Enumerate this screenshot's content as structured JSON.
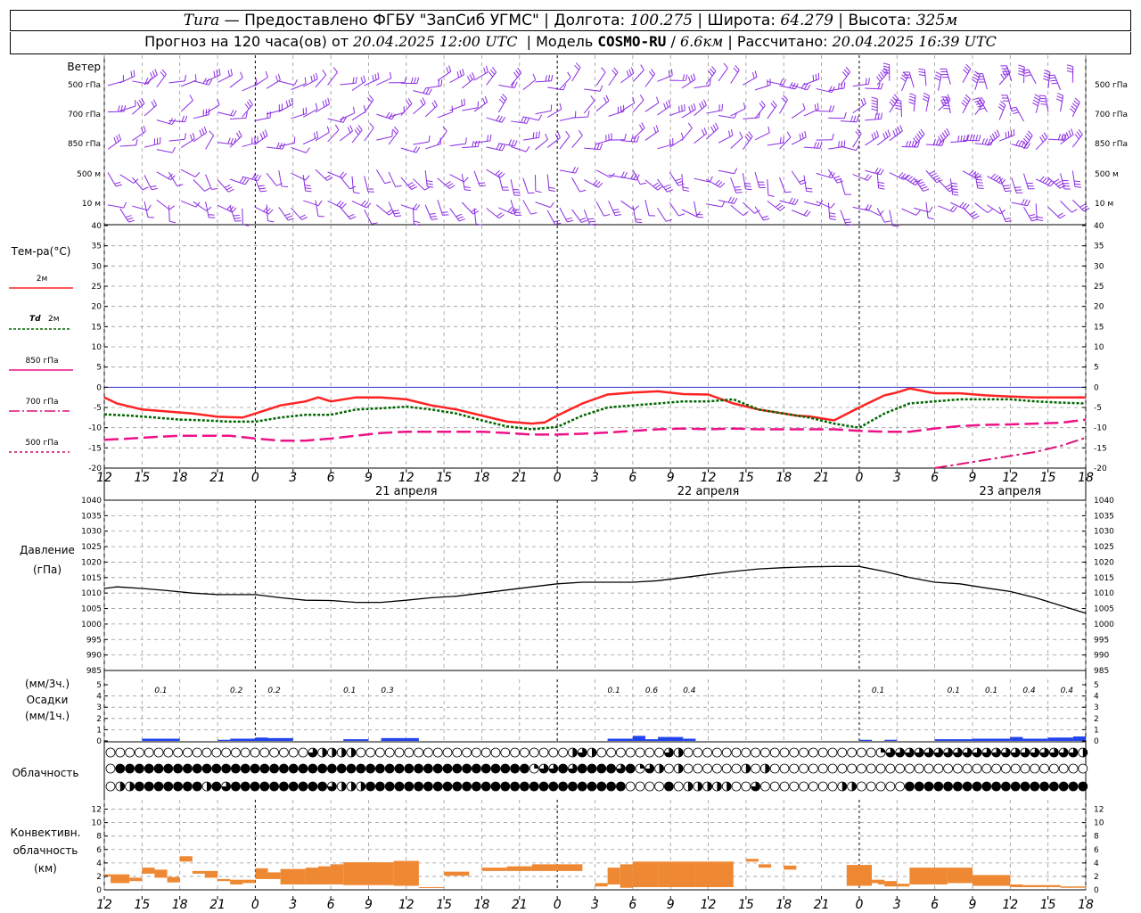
{
  "header": {
    "station": "Tura",
    "provider": "Предоставлено ФГБУ \"ЗапСиб УГМС\"",
    "lon_label": "Долгота:",
    "lon_value": "100.275",
    "lat_label": "Широта:",
    "lat_value": "64.279",
    "alt_label": "Высота:",
    "alt_value": "325м",
    "forecast_label": "Прогноз на 120 часа(ов) от",
    "forecast_from": "20.04.2025 12:00 UTC",
    "model_label": "Модель",
    "model_name": "COSMO-RU",
    "model_res": "6.6км",
    "computed_label": "Рассчитано:",
    "computed_value": "20.04.2025 16:39 UTC"
  },
  "colors": {
    "wind": "#8a2be2",
    "t2m": "#ff2222",
    "td2m": "#006600",
    "t850": "#ee1188",
    "t700": "#dd1177",
    "t500": "#cc1166",
    "pressure": "#000000",
    "precip": "#2244ee",
    "convective": "#ee8833",
    "grid": "#999999",
    "zero_line": "#3333cc"
  },
  "chart_data": [
    {
      "type": "wind-barbs",
      "title": "Ветер",
      "levels": [
        "500 гПа",
        "700 гПа",
        "850 гПа",
        "500 м",
        "10 м"
      ]
    },
    {
      "type": "line",
      "title": "Тем-ра(°C)",
      "ylim": [
        -20,
        40
      ],
      "yticks": [
        -20,
        -15,
        -10,
        -5,
        0,
        5,
        10,
        15,
        20,
        25,
        30,
        35,
        40
      ],
      "x_start_hours": 12,
      "x_end_hours": 90,
      "xtick_labels": [
        "12",
        "15",
        "18",
        "21",
        "0",
        "3",
        "6",
        "9",
        "12",
        "15",
        "18",
        "21",
        "0",
        "3",
        "6",
        "9",
        "12",
        "15",
        "18",
        "21",
        "0",
        "3",
        "6",
        "9",
        "12",
        "15",
        "18"
      ],
      "day_labels": [
        "21 апреля",
        "22 апреля",
        "23 апреля"
      ],
      "series": [
        {
          "name": "2м",
          "style": "solid",
          "x": [
            12,
            13,
            15,
            17,
            19,
            21,
            23,
            24,
            26,
            28,
            29,
            30,
            32,
            34,
            36,
            38,
            40,
            42,
            44,
            46,
            47,
            48,
            50,
            52,
            54,
            56,
            58,
            60,
            62,
            64,
            66,
            67,
            68,
            70,
            72,
            74,
            75,
            76,
            78,
            80,
            82,
            84,
            86,
            88,
            90
          ],
          "y": [
            -2.5,
            -4,
            -5.5,
            -6,
            -6.5,
            -7.3,
            -7.5,
            -6.5,
            -4.5,
            -3.5,
            -2.5,
            -3.5,
            -2.5,
            -2.5,
            -3,
            -4.5,
            -5.5,
            -7,
            -8.5,
            -9,
            -8.7,
            -7,
            -4,
            -1.8,
            -1.3,
            -1,
            -1.7,
            -1.8,
            -4,
            -5.5,
            -6.5,
            -7,
            -7.2,
            -8.2,
            -5,
            -2,
            -1.3,
            -0.3,
            -1.5,
            -1.5,
            -2,
            -2.3,
            -2.5,
            -2.5,
            -2.5
          ]
        },
        {
          "name": "Td 2м",
          "style": "dashed",
          "x": [
            12,
            14,
            16,
            18,
            20,
            22,
            24,
            26,
            28,
            30,
            32,
            34,
            36,
            38,
            40,
            42,
            44,
            46,
            48,
            50,
            52,
            54,
            56,
            58,
            60,
            62,
            64,
            66,
            68,
            70,
            72,
            74,
            76,
            78,
            80,
            82,
            84,
            86,
            88,
            90
          ],
          "y": [
            -6.7,
            -7,
            -7.5,
            -8,
            -8.2,
            -8.5,
            -8.5,
            -7.5,
            -6.8,
            -6.8,
            -5.5,
            -5.2,
            -4.8,
            -5.5,
            -6.5,
            -8.2,
            -9.7,
            -10.4,
            -9.8,
            -7,
            -5,
            -4.5,
            -4,
            -3.5,
            -3.5,
            -3,
            -5.5,
            -6.5,
            -7.5,
            -9,
            -10,
            -6.5,
            -4,
            -3.5,
            -3,
            -3,
            -3,
            -3.5,
            -3.8,
            -4
          ]
        },
        {
          "name": "850 гПа",
          "style": "long-dash",
          "x": [
            12,
            14,
            16,
            18,
            20,
            22,
            24,
            26,
            28,
            30,
            32,
            34,
            36,
            38,
            40,
            42,
            44,
            46,
            48,
            50,
            52,
            54,
            56,
            58,
            60,
            62,
            64,
            66,
            68,
            70,
            72,
            74,
            76,
            78,
            80,
            82,
            84,
            86,
            88,
            90
          ],
          "y": [
            -13,
            -12.7,
            -12.3,
            -12,
            -12,
            -12,
            -12.7,
            -13.2,
            -13.2,
            -12.7,
            -12,
            -11.3,
            -11,
            -11,
            -11,
            -11,
            -11.3,
            -11.7,
            -11.7,
            -11.5,
            -11.2,
            -10.8,
            -10.4,
            -10.2,
            -10.4,
            -10.2,
            -10.4,
            -10.4,
            -10.4,
            -10.4,
            -10.8,
            -11,
            -11,
            -10.2,
            -9.6,
            -9.3,
            -9.2,
            -9,
            -8.8,
            -8
          ]
        },
        {
          "name": "700 гПа",
          "style": "dash-dot",
          "x": [
            78,
            80,
            82,
            84,
            86,
            88,
            90
          ],
          "y": [
            -20,
            -19,
            -18,
            -17,
            -16,
            -14.5,
            -12.5
          ]
        }
      ]
    },
    {
      "type": "line",
      "title": "Давление",
      "unit": "(гПа)",
      "ylim": [
        985,
        1040
      ],
      "yticks": [
        985,
        990,
        995,
        1000,
        1005,
        1010,
        1015,
        1020,
        1025,
        1030,
        1035,
        1040
      ],
      "x": [
        12,
        13,
        15,
        17,
        19,
        21,
        23,
        24,
        26,
        28,
        30,
        32,
        34,
        36,
        38,
        40,
        42,
        44,
        46,
        48,
        50,
        52,
        54,
        56,
        58,
        60,
        62,
        64,
        66,
        68,
        70,
        72,
        74,
        76,
        78,
        80,
        82,
        84,
        86,
        88,
        90
      ],
      "y": [
        1011.5,
        1012,
        1011.5,
        1010.8,
        1010,
        1009.5,
        1009.5,
        1009.5,
        1008.5,
        1007.7,
        1007.6,
        1007,
        1007,
        1007.7,
        1008.5,
        1009,
        1010,
        1011,
        1012,
        1013,
        1013.5,
        1013.5,
        1013.5,
        1014,
        1015,
        1016,
        1017,
        1017.8,
        1018.2,
        1018.5,
        1018.6,
        1018.6,
        1017,
        1015,
        1013.5,
        1013,
        1011.7,
        1010.5,
        1008.5,
        1006,
        1003.5
      ]
    },
    {
      "type": "bar",
      "title": "Осадки",
      "unit_3h": "(мм/3ч.)",
      "unit_1h": "(мм/1ч.)",
      "ylim": [
        0,
        5
      ],
      "yticks": [
        0,
        1,
        2,
        3,
        4,
        5
      ],
      "labels_3h": [
        {
          "x": 16.5,
          "v": "0.1"
        },
        {
          "x": 22.5,
          "v": "0.2"
        },
        {
          "x": 25.5,
          "v": "0.2"
        },
        {
          "x": 31.5,
          "v": "0.1"
        },
        {
          "x": 34.5,
          "v": "0.3"
        },
        {
          "x": 52.5,
          "v": "0.1"
        },
        {
          "x": 55.5,
          "v": "0.6"
        },
        {
          "x": 58.5,
          "v": "0.4"
        },
        {
          "x": 73.5,
          "v": "0.1"
        },
        {
          "x": 79.5,
          "v": "0.1"
        },
        {
          "x": 82.5,
          "v": "0.1"
        },
        {
          "x": 85.5,
          "v": "0.4"
        },
        {
          "x": 88.5,
          "v": "0.4"
        }
      ],
      "hourly": [
        {
          "x": 15,
          "w": 3,
          "v": 0.2
        },
        {
          "x": 21,
          "w": 1,
          "v": 0.1
        },
        {
          "x": 22,
          "w": 2,
          "v": 0.2
        },
        {
          "x": 24,
          "w": 1,
          "v": 0.3
        },
        {
          "x": 25,
          "w": 2,
          "v": 0.25
        },
        {
          "x": 31,
          "w": 2,
          "v": 0.15
        },
        {
          "x": 34,
          "w": 3,
          "v": 0.25
        },
        {
          "x": 52,
          "w": 2,
          "v": 0.2
        },
        {
          "x": 54,
          "w": 1,
          "v": 0.45
        },
        {
          "x": 55,
          "w": 1,
          "v": 0.15
        },
        {
          "x": 56,
          "w": 2,
          "v": 0.35
        },
        {
          "x": 58,
          "w": 1,
          "v": 0.2
        },
        {
          "x": 72,
          "w": 1,
          "v": 0.1
        },
        {
          "x": 74,
          "w": 1,
          "v": 0.1
        },
        {
          "x": 78,
          "w": 3,
          "v": 0.15
        },
        {
          "x": 81,
          "w": 3,
          "v": 0.2
        },
        {
          "x": 84,
          "w": 1,
          "v": 0.35
        },
        {
          "x": 85,
          "w": 2,
          "v": 0.2
        },
        {
          "x": 87,
          "w": 2,
          "v": 0.3
        },
        {
          "x": 89,
          "w": 1,
          "v": 0.4
        }
      ]
    },
    {
      "type": "symbols",
      "title": "Облачность",
      "rows": [
        "000000000000000000000322220000000000000000000000232000000032000000000000000000001333333333333333333332",
        "044444444444444444444444444444444444444444441334344443413202000000202000000000000000000000000000000000",
        "022444444424344444444443222444444444444444444444444444000040222220030000000022000004444444444444444444"
      ]
    },
    {
      "type": "bar",
      "title": "Конвективн. облачность",
      "unit": "(км)",
      "ylim": [
        0,
        13
      ],
      "yticks": [
        0,
        2,
        4,
        6,
        8,
        10,
        12
      ],
      "segments": [
        {
          "x": 12,
          "w": 0.5,
          "b": 2.0,
          "t": 2.3
        },
        {
          "x": 12.5,
          "w": 1.5,
          "b": 1.0,
          "t": 2.3
        },
        {
          "x": 14,
          "w": 1,
          "b": 1.3,
          "t": 1.8
        },
        {
          "x": 15,
          "w": 1,
          "b": 2.4,
          "t": 3.3
        },
        {
          "x": 16,
          "w": 1,
          "b": 1.8,
          "t": 3.0
        },
        {
          "x": 17,
          "w": 1,
          "b": 1.1,
          "t": 1.9
        },
        {
          "x": 18,
          "w": 1,
          "b": 4.2,
          "t": 5.0
        },
        {
          "x": 19,
          "w": 1,
          "b": 2.4,
          "t": 2.8
        },
        {
          "x": 20,
          "w": 1,
          "b": 1.8,
          "t": 2.8
        },
        {
          "x": 21,
          "w": 1,
          "b": 1.3,
          "t": 1.6
        },
        {
          "x": 22,
          "w": 1,
          "b": 0.8,
          "t": 1.5
        },
        {
          "x": 23,
          "w": 1,
          "b": 1.0,
          "t": 1.5
        },
        {
          "x": 24,
          "w": 1,
          "b": 1.6,
          "t": 3.2
        },
        {
          "x": 25,
          "w": 1,
          "b": 1.6,
          "t": 2.6
        },
        {
          "x": 26,
          "w": 2,
          "b": 0.8,
          "t": 3.1
        },
        {
          "x": 28,
          "w": 1,
          "b": 0.8,
          "t": 3.3
        },
        {
          "x": 29,
          "w": 1,
          "b": 0.8,
          "t": 3.5
        },
        {
          "x": 30,
          "w": 1,
          "b": 0.8,
          "t": 3.8
        },
        {
          "x": 31,
          "w": 4,
          "b": 0.7,
          "t": 4.1
        },
        {
          "x": 35,
          "w": 2,
          "b": 0.6,
          "t": 4.3
        },
        {
          "x": 37,
          "w": 2,
          "b": 0.3,
          "t": 0.4
        },
        {
          "x": 39,
          "w": 2,
          "b": 2.1,
          "t": 2.7
        },
        {
          "x": 42,
          "w": 2,
          "b": 2.8,
          "t": 3.3
        },
        {
          "x": 44,
          "w": 2,
          "b": 2.8,
          "t": 3.5
        },
        {
          "x": 46,
          "w": 4,
          "b": 2.8,
          "t": 3.8
        },
        {
          "x": 51,
          "w": 1,
          "b": 0.5,
          "t": 1.0
        },
        {
          "x": 52,
          "w": 1,
          "b": 0.8,
          "t": 3.3
        },
        {
          "x": 53,
          "w": 1,
          "b": 0.3,
          "t": 3.8
        },
        {
          "x": 54,
          "w": 2,
          "b": 0.4,
          "t": 4.2
        },
        {
          "x": 56,
          "w": 3,
          "b": 0.4,
          "t": 4.2
        },
        {
          "x": 59,
          "w": 3,
          "b": 0.4,
          "t": 4.2
        },
        {
          "x": 63,
          "w": 1,
          "b": 4.2,
          "t": 4.6
        },
        {
          "x": 64,
          "w": 1,
          "b": 3.3,
          "t": 3.8
        },
        {
          "x": 66,
          "w": 1,
          "b": 3.0,
          "t": 3.6
        },
        {
          "x": 71,
          "w": 2,
          "b": 0.6,
          "t": 3.7
        },
        {
          "x": 73,
          "w": 1,
          "b": 1.0,
          "t": 1.5
        },
        {
          "x": 73.5,
          "w": 0.5,
          "b": 0.8,
          "t": 1.3
        },
        {
          "x": 74,
          "w": 1,
          "b": 0.5,
          "t": 1.3
        },
        {
          "x": 75,
          "w": 1,
          "b": 0.5,
          "t": 0.9
        },
        {
          "x": 76,
          "w": 3,
          "b": 0.8,
          "t": 3.3
        },
        {
          "x": 79,
          "w": 2,
          "b": 1.0,
          "t": 3.3
        },
        {
          "x": 81,
          "w": 3,
          "b": 0.6,
          "t": 2.2
        },
        {
          "x": 84,
          "w": 1,
          "b": 0.4,
          "t": 0.8
        },
        {
          "x": 85,
          "w": 3,
          "b": 0.4,
          "t": 0.7
        },
        {
          "x": 88,
          "w": 1,
          "b": 0.3,
          "t": 0.5
        },
        {
          "x": 89,
          "w": 1,
          "b": 0.3,
          "t": 0.5
        }
      ]
    }
  ],
  "labels": {
    "wind": "Ветер",
    "wind_levels": [
      "500 гПа",
      "700 гПа",
      "850 гПа",
      "500 м",
      "10 м"
    ],
    "temp_title": "Тем-ра(°C)",
    "legend_2m": "2м",
    "legend_td_prefix": "Td",
    "legend_td": "2м",
    "legend_850": "850 гПа",
    "legend_700": "700 гПа",
    "legend_500": "500 гПа",
    "pressure_title": "Давление",
    "pressure_unit": "(гПа)",
    "precip_unit3": "(мм/3ч.)",
    "precip_title": "Осадки",
    "precip_unit1": "(мм/1ч.)",
    "clouds_title": "Облачность",
    "conv_title1": "Конвективн.",
    "conv_title2": "облачность",
    "conv_unit": "(км)"
  }
}
